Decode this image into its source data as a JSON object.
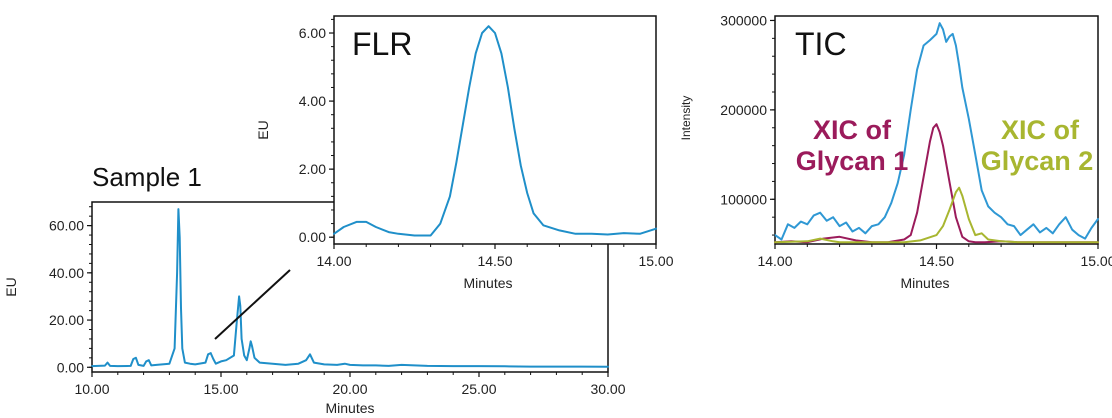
{
  "colors": {
    "fl_trace": "#1f8fc9",
    "tic_trace": "#2f98d4",
    "xic1": "#9b1b5b",
    "xic2": "#a8b630",
    "axis": "#111111"
  },
  "chart_data": [
    {
      "id": "sample",
      "type": "line",
      "title": "Sample 1",
      "xlabel": "Minutes",
      "ylabel": "EU",
      "xlim": [
        10,
        30
      ],
      "ylim": [
        -2,
        70
      ],
      "xticks": [
        "10.00",
        "15.00",
        "20.00",
        "25.00",
        "30.00"
      ],
      "xtick_values": [
        10,
        15,
        20,
        25,
        30
      ],
      "yticks": [
        "0.00",
        "20.00",
        "40.00",
        "60.00"
      ],
      "ytick_values": [
        0,
        20,
        40,
        60
      ],
      "series": [
        {
          "color": "#1f8fc9",
          "x": [
            10.0,
            10.5,
            10.6,
            10.7,
            11.0,
            11.5,
            11.6,
            11.7,
            11.8,
            12.0,
            12.1,
            12.2,
            12.3,
            12.5,
            13.0,
            13.2,
            13.3,
            13.35,
            13.4,
            13.45,
            13.5,
            13.6,
            13.8,
            14.0,
            14.4,
            14.5,
            14.6,
            14.7,
            14.8,
            15.0,
            15.2,
            15.5,
            15.6,
            15.7,
            15.75,
            15.8,
            15.9,
            16.0,
            16.1,
            16.15,
            16.2,
            16.3,
            16.5,
            17.0,
            17.5,
            18.0,
            18.3,
            18.45,
            18.6,
            19.0,
            19.5,
            19.8,
            20.0,
            20.5,
            21.0,
            21.5,
            22.0,
            23.0,
            24.0,
            25.0,
            26.0,
            27.0,
            28.0,
            29.0,
            30.0
          ],
          "y": [
            0.5,
            0.7,
            2.0,
            0.6,
            0.5,
            0.6,
            3.5,
            4.0,
            1.0,
            0.6,
            2.5,
            3.0,
            0.8,
            1.0,
            1.5,
            8.0,
            40.0,
            67.0,
            55.0,
            25.0,
            8.0,
            2.0,
            1.5,
            1.2,
            2.0,
            5.5,
            6.0,
            3.5,
            1.5,
            2.5,
            3.0,
            5.0,
            18.0,
            30.0,
            26.0,
            12.0,
            5.0,
            3.0,
            8.0,
            11.0,
            9.0,
            4.0,
            2.0,
            1.5,
            1.0,
            1.5,
            3.0,
            5.5,
            2.0,
            1.2,
            1.0,
            1.5,
            1.0,
            0.8,
            0.8,
            0.6,
            1.0,
            0.6,
            0.5,
            0.5,
            0.4,
            0.3,
            0.3,
            0.3,
            0.2
          ]
        }
      ]
    },
    {
      "id": "flr",
      "type": "line",
      "title": "FLR",
      "xlabel": "Minutes",
      "ylabel": "EU",
      "xlim": [
        14.0,
        15.0
      ],
      "ylim": [
        -0.2,
        6.5
      ],
      "xticks": [
        "14.00",
        "14.50",
        "15.00"
      ],
      "xtick_values": [
        14.0,
        14.5,
        15.0
      ],
      "yticks": [
        "0.00",
        "2.00",
        "4.00",
        "6.00"
      ],
      "ytick_values": [
        0,
        2,
        4,
        6
      ],
      "series": [
        {
          "color": "#1f8fc9",
          "x": [
            14.0,
            14.03,
            14.07,
            14.1,
            14.13,
            14.17,
            14.2,
            14.25,
            14.3,
            14.33,
            14.36,
            14.38,
            14.4,
            14.42,
            14.44,
            14.46,
            14.48,
            14.5,
            14.52,
            14.54,
            14.56,
            14.58,
            14.6,
            14.62,
            14.65,
            14.7,
            14.75,
            14.8,
            14.85,
            14.9,
            14.95,
            15.0
          ],
          "y": [
            0.1,
            0.3,
            0.45,
            0.45,
            0.3,
            0.15,
            0.1,
            0.05,
            0.05,
            0.4,
            1.2,
            2.2,
            3.3,
            4.4,
            5.4,
            6.0,
            6.2,
            6.0,
            5.4,
            4.4,
            3.2,
            2.1,
            1.3,
            0.7,
            0.35,
            0.2,
            0.1,
            0.1,
            0.08,
            0.12,
            0.1,
            0.25
          ]
        }
      ]
    },
    {
      "id": "tic",
      "type": "line",
      "title": "TIC",
      "xlabel": "Minutes",
      "ylabel": "Intensity",
      "xlim": [
        14.0,
        15.0
      ],
      "ylim": [
        50000,
        305000
      ],
      "xticks": [
        "14.00",
        "14.50",
        "15.00"
      ],
      "xtick_values": [
        14.0,
        14.5,
        15.0
      ],
      "yticks": [
        "100000",
        "200000",
        "300000"
      ],
      "ytick_values": [
        100000,
        200000,
        300000
      ],
      "annotations": [
        {
          "line1": "XIC of",
          "line2": "Glycan 1",
          "color": "#9b1b5b"
        },
        {
          "line1": "XIC of",
          "line2": "Glycan 2",
          "color": "#a8b630"
        }
      ],
      "series": [
        {
          "color": "#2f98d4",
          "x": [
            14.0,
            14.02,
            14.04,
            14.06,
            14.08,
            14.1,
            14.12,
            14.14,
            14.16,
            14.18,
            14.2,
            14.22,
            14.24,
            14.26,
            14.28,
            14.3,
            14.32,
            14.34,
            14.36,
            14.38,
            14.4,
            14.42,
            14.44,
            14.46,
            14.48,
            14.5,
            14.51,
            14.52,
            14.53,
            14.54,
            14.55,
            14.56,
            14.57,
            14.58,
            14.6,
            14.62,
            14.64,
            14.66,
            14.68,
            14.7,
            14.72,
            14.74,
            14.76,
            14.78,
            14.8,
            14.82,
            14.84,
            14.86,
            14.88,
            14.9,
            14.92,
            14.94,
            14.96,
            14.98,
            15.0
          ],
          "y": [
            60000,
            55000,
            72000,
            68000,
            75000,
            72000,
            82000,
            85000,
            76000,
            80000,
            70000,
            74000,
            64000,
            68000,
            62000,
            70000,
            72000,
            80000,
            96000,
            118000,
            150000,
            200000,
            245000,
            272000,
            278000,
            285000,
            297000,
            290000,
            276000,
            282000,
            285000,
            272000,
            250000,
            225000,
            190000,
            150000,
            110000,
            92000,
            85000,
            80000,
            72000,
            70000,
            60000,
            66000,
            72000,
            63000,
            68000,
            62000,
            72000,
            80000,
            66000,
            60000,
            56000,
            68000,
            78000
          ]
        },
        {
          "color": "#9b1b5b",
          "x": [
            14.0,
            14.05,
            14.1,
            14.15,
            14.2,
            14.25,
            14.3,
            14.35,
            14.4,
            14.42,
            14.44,
            14.46,
            14.48,
            14.49,
            14.5,
            14.51,
            14.52,
            14.54,
            14.56,
            14.58,
            14.6,
            14.62,
            14.65,
            14.7,
            14.75,
            14.8,
            14.85,
            14.9,
            14.95,
            15.0
          ],
          "y": [
            52000,
            53000,
            52000,
            56000,
            58000,
            54000,
            52000,
            52000,
            55000,
            60000,
            85000,
            125000,
            165000,
            180000,
            184000,
            175000,
            160000,
            120000,
            80000,
            58000,
            53000,
            52000,
            52000,
            53000,
            52000,
            52000,
            52000,
            52000,
            52000,
            52000
          ]
        },
        {
          "color": "#a8b630",
          "x": [
            14.0,
            14.1,
            14.14,
            14.18,
            14.2,
            14.25,
            14.3,
            14.35,
            14.4,
            14.45,
            14.5,
            14.52,
            14.54,
            14.56,
            14.57,
            14.58,
            14.6,
            14.62,
            14.64,
            14.66,
            14.7,
            14.75,
            14.8,
            14.9,
            15.0
          ],
          "y": [
            52000,
            53000,
            56000,
            53000,
            52000,
            52000,
            52000,
            52000,
            52000,
            54000,
            60000,
            70000,
            88000,
            108000,
            113000,
            104000,
            78000,
            60000,
            62000,
            55000,
            53000,
            52000,
            52000,
            52000,
            52000
          ]
        }
      ]
    }
  ]
}
